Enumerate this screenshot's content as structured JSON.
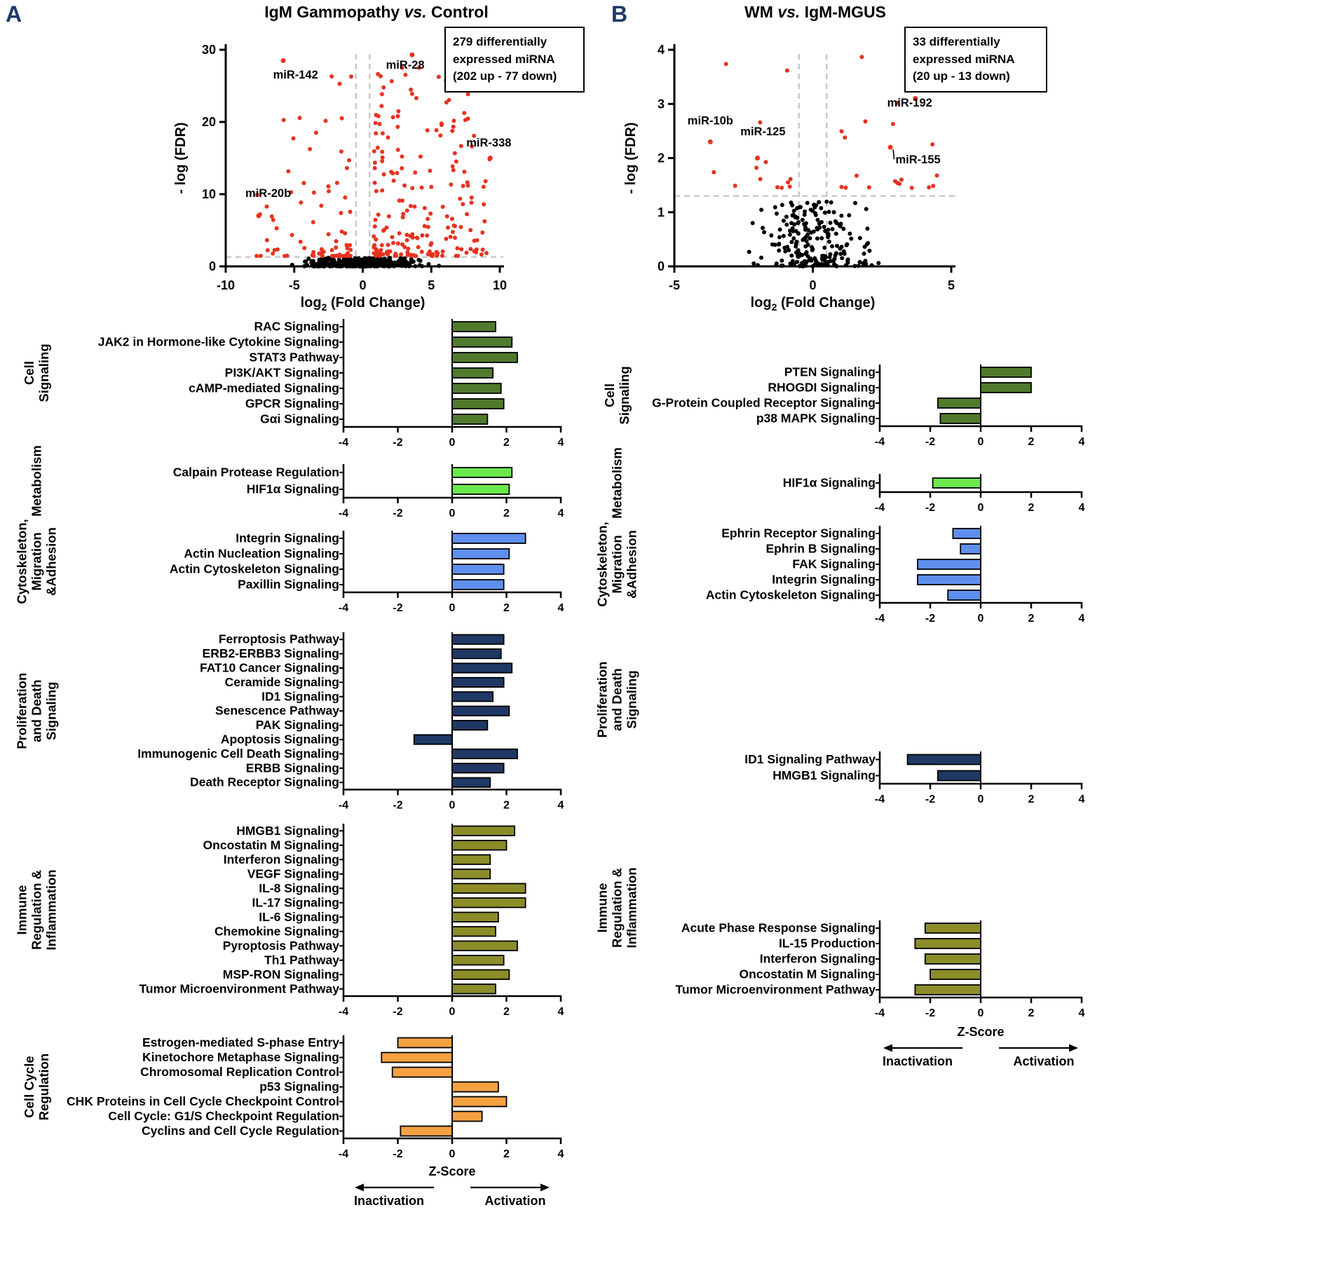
{
  "figure": {
    "background": "#ffffff",
    "panel_labels": {
      "a": "A",
      "b": "B"
    },
    "panel_label_color": "#1f3864"
  },
  "chart_data": [
    {
      "panel": "A",
      "volcano": {
        "type": "scatter",
        "title": {
          "pre": "IgM Gammopathy ",
          "vs": "vs.",
          "post": " Control"
        },
        "annotation_lines": [
          "279 differentially",
          "expressed miRNA",
          "(202 up - 77 down)"
        ],
        "xlabel": {
          "base": "log",
          "sub": "2",
          "rest": " (Fold Change)"
        },
        "ylabel": "- log (FDR)",
        "xlim": [
          -10,
          10
        ],
        "ylim": [
          0,
          30
        ],
        "xticks": [
          -10,
          -5,
          0,
          5,
          10
        ],
        "yticks": [
          0,
          10,
          20,
          30
        ],
        "fc_threshold": 0.5,
        "fdr_threshold": 1.3,
        "sig_color": "#e63320",
        "ns_color": "#000000",
        "threshold_line_color": "#c9c9c9",
        "counts": {
          "up": 202,
          "down": 77,
          "nonsig": 380
        },
        "labeled_points": [
          {
            "label": "miR-142",
            "x": -5.8,
            "y": 28.5,
            "lx": -4.9,
            "ly": 26.0
          },
          {
            "label": "miR-28",
            "x": 3.6,
            "y": 29.3,
            "lx": 3.1,
            "ly": 27.4
          },
          {
            "label": "miR-338",
            "x": 9.3,
            "y": 15.0,
            "lx": 9.2,
            "ly": 16.6
          },
          {
            "label": "miR-20b",
            "x": -7.6,
            "y": 7.0,
            "lx": -6.9,
            "ly": 9.6
          }
        ],
        "seed": 1337
      },
      "zscore_axis": {
        "min": -4,
        "max": 4,
        "ticks": [
          -4,
          -2,
          0,
          2,
          4
        ],
        "label": "Z-Score",
        "left_label": "Inactivation",
        "right_label": "Activation"
      },
      "groups": [
        {
          "category_lines": [
            "Cell",
            "Signaling"
          ],
          "color": "#507a2c",
          "bars": [
            {
              "pathway": "RAC Signaling",
              "z": 1.6
            },
            {
              "pathway": "JAK2 in Hormone-like Cytokine Signaling",
              "z": 2.2
            },
            {
              "pathway": "STAT3 Pathway",
              "z": 2.4
            },
            {
              "pathway": "PI3K/AKT Signaling",
              "z": 1.5
            },
            {
              "pathway": "cAMP-mediated Signaling",
              "z": 1.8
            },
            {
              "pathway": "GPCR Signaling",
              "z": 1.9
            },
            {
              "pathway": "Gαi Signaling",
              "z": 1.3
            }
          ]
        },
        {
          "category_lines": [
            "Metabolism"
          ],
          "color": "#6ae84c",
          "bars": [
            {
              "pathway": "Calpain Protease Regulation",
              "z": 2.2
            },
            {
              "pathway": "HIF1α Signaling",
              "z": 2.1
            }
          ]
        },
        {
          "category_lines": [
            "Cytoskeleton,",
            "Migration",
            "&Adhesion"
          ],
          "color": "#5f8fee",
          "bars": [
            {
              "pathway": "Integrin Signaling",
              "z": 2.7
            },
            {
              "pathway": "Actin Nucleation Signaling",
              "z": 2.1
            },
            {
              "pathway": "Actin Cytoskeleton Signaling",
              "z": 1.9
            },
            {
              "pathway": "Paxillin Signaling",
              "z": 1.9
            }
          ]
        },
        {
          "category_lines": [
            "Proliferation",
            "and Death",
            "Signaling"
          ],
          "color": "#1f3864",
          "bars": [
            {
              "pathway": "Ferroptosis Pathway",
              "z": 1.9
            },
            {
              "pathway": "ERB2-ERBB3 Signaling",
              "z": 1.8
            },
            {
              "pathway": "FAT10 Cancer Signaling",
              "z": 2.2
            },
            {
              "pathway": "Ceramide Signaling",
              "z": 1.9
            },
            {
              "pathway": "ID1 Signaling",
              "z": 1.5
            },
            {
              "pathway": "Senescence Pathway",
              "z": 2.1
            },
            {
              "pathway": "PAK Signaling",
              "z": 1.3
            },
            {
              "pathway": "Apoptosis Signaling",
              "z": -1.4
            },
            {
              "pathway": "Immunogenic Cell Death Signaling",
              "z": 2.4
            },
            {
              "pathway": "ERBB Signaling",
              "z": 1.9
            },
            {
              "pathway": "Death Receptor Signaling",
              "z": 1.4
            }
          ]
        },
        {
          "category_lines": [
            "Immune",
            "Regulation &",
            "Inflammation"
          ],
          "color": "#8c8c28",
          "bars": [
            {
              "pathway": "HMGB1 Signaling",
              "z": 2.3
            },
            {
              "pathway": "Oncostatin M Signaling",
              "z": 2.0
            },
            {
              "pathway": "Interferon Signaling",
              "z": 1.4
            },
            {
              "pathway": "VEGF Signaling",
              "z": 1.4
            },
            {
              "pathway": "IL-8 Signaling",
              "z": 2.7
            },
            {
              "pathway": "IL-17 Signaling",
              "z": 2.7
            },
            {
              "pathway": "IL-6 Signaling",
              "z": 1.7
            },
            {
              "pathway": "Chemokine Signaling",
              "z": 1.6
            },
            {
              "pathway": "Pyroptosis Pathway",
              "z": 2.4
            },
            {
              "pathway": "Th1 Pathway",
              "z": 1.9
            },
            {
              "pathway": "MSP-RON Signaling",
              "z": 2.1
            },
            {
              "pathway": "Tumor Microenvironment Pathway",
              "z": 1.6
            }
          ]
        },
        {
          "category_lines": [
            "Cell Cycle",
            "Regulation"
          ],
          "color": "#f5a142",
          "bars": [
            {
              "pathway": "Estrogen-mediated S-phase Entry",
              "z": -2.0
            },
            {
              "pathway": "Kinetochore Metaphase Signaling",
              "z": -2.6
            },
            {
              "pathway": "Chromosomal Replication Control",
              "z": -2.2
            },
            {
              "pathway": "p53 Signaling",
              "z": 1.7
            },
            {
              "pathway": "CHK Proteins in Cell Cycle Checkpoint Control",
              "z": 2.0
            },
            {
              "pathway": "Cell Cycle: G1/S Checkpoint Regulation",
              "z": 1.1
            },
            {
              "pathway": "Cyclins and Cell Cycle Regulation",
              "z": -1.9
            }
          ]
        }
      ]
    },
    {
      "panel": "B",
      "volcano": {
        "type": "scatter",
        "title": {
          "pre": "WM ",
          "vs": "vs.",
          "post": " IgM-MGUS"
        },
        "annotation_lines": [
          "33 differentially",
          "expressed miRNA",
          "(20 up - 13 down)"
        ],
        "xlabel": {
          "base": "log",
          "sub": "2",
          "rest": " (Fold Change)"
        },
        "ylabel": "- log (FDR)",
        "xlim": [
          -5,
          5
        ],
        "ylim": [
          0,
          4
        ],
        "xticks": [
          -5,
          0,
          5
        ],
        "yticks": [
          0,
          1,
          2,
          3,
          4
        ],
        "fc_threshold": 0.5,
        "fdr_threshold": 1.3,
        "sig_color": "#e63320",
        "ns_color": "#000000",
        "threshold_line_color": "#c9c9c9",
        "counts": {
          "up": 20,
          "down": 13,
          "nonsig": 220
        },
        "labeled_points": [
          {
            "label": "miR-10b",
            "x": -3.7,
            "y": 2.3,
            "lx": -3.7,
            "ly": 2.62
          },
          {
            "label": "miR-125",
            "x": -2.0,
            "y": 2.0,
            "lx": -1.8,
            "ly": 2.42
          },
          {
            "label": "miR-192",
            "x": 3.7,
            "y": 3.1,
            "lx": 3.5,
            "ly": 2.95
          },
          {
            "label": "miR-155",
            "x": 2.8,
            "y": 2.2,
            "lx": 3.8,
            "ly": 1.9,
            "leader": true
          }
        ],
        "seed": 4242
      },
      "zscore_axis": {
        "min": -4,
        "max": 4,
        "ticks": [
          -4,
          -2,
          0,
          2,
          4
        ],
        "label": "Z-Score",
        "left_label": "Inactivation",
        "right_label": "Activation"
      },
      "groups": [
        {
          "category_lines": [
            "Cell",
            "Signaling"
          ],
          "color": "#507a2c",
          "bars": [
            {
              "pathway": "PTEN Signaling",
              "z": 2.0
            },
            {
              "pathway": "RHOGDI Signaling",
              "z": 2.0
            },
            {
              "pathway": "G-Protein Coupled Receptor Signaling",
              "z": -1.7
            },
            {
              "pathway": "p38 MAPK Signaling",
              "z": -1.6
            }
          ]
        },
        {
          "category_lines": [
            "Metabolism"
          ],
          "color": "#6ae84c",
          "bars": [
            {
              "pathway": "HIF1α Signaling",
              "z": -1.9
            }
          ]
        },
        {
          "category_lines": [
            "Cytoskeleton,",
            "Migration",
            "&Adhesion"
          ],
          "color": "#5f8fee",
          "bars": [
            {
              "pathway": "Ephrin Receptor Signaling",
              "z": -1.1
            },
            {
              "pathway": "Ephrin B Signaling",
              "z": -0.8
            },
            {
              "pathway": "FAK Signaling",
              "z": -2.5
            },
            {
              "pathway": "Integrin Signaling",
              "z": -2.5
            },
            {
              "pathway": "Actin Cytoskeleton Signaling",
              "z": -1.3
            }
          ]
        },
        {
          "category_lines": [
            "Proliferation",
            "and Death",
            "Signaling"
          ],
          "color": "#1f3864",
          "bars": [
            {
              "pathway": "ID1 Signaling Pathway",
              "z": -2.9
            },
            {
              "pathway": "HMGB1 Signaling",
              "z": -1.7
            }
          ]
        },
        {
          "category_lines": [
            "Immune",
            "Regulation &",
            "Inflammation"
          ],
          "color": "#8c8c28",
          "bars": [
            {
              "pathway": "Acute Phase Response Signaling",
              "z": -2.2
            },
            {
              "pathway": "IL-15 Production",
              "z": -2.6
            },
            {
              "pathway": "Interferon Signaling",
              "z": -2.2
            },
            {
              "pathway": "Oncostatin M Signaling",
              "z": -2.0
            },
            {
              "pathway": "Tumor Microenvironment Pathway",
              "z": -2.6
            }
          ]
        }
      ]
    }
  ]
}
